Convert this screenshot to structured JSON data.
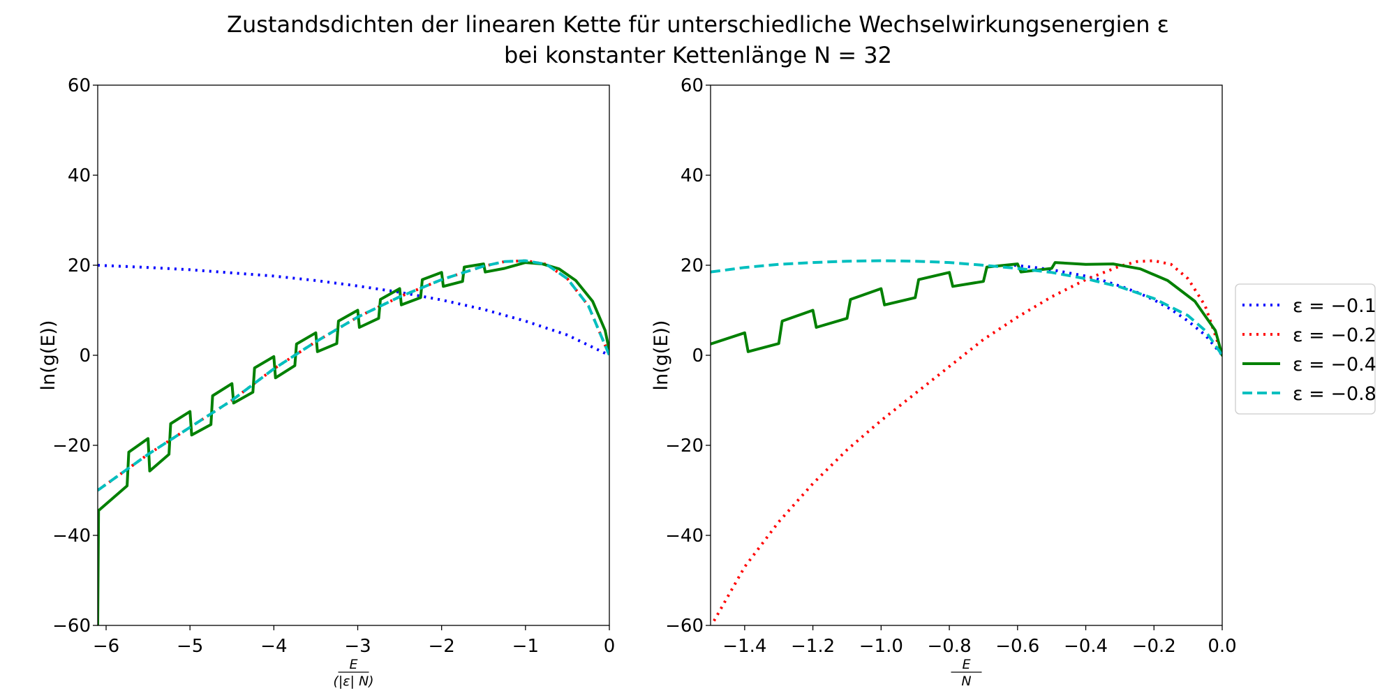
{
  "figure": {
    "title_line1": "Zustandsdichten der linearen Kette für unterschiedliche Wechselwirkungsenergien ε",
    "title_line2": "bei konstanter Kettenlänge N = 32"
  },
  "chart_data": [
    {
      "type": "line",
      "xlabel": "E / (|ε| N)",
      "ylabel": "ln(g(E))",
      "xlim": [
        -6.1,
        0
      ],
      "ylim": [
        -60,
        60
      ],
      "xticks": [
        -6,
        -5,
        -4,
        -3,
        -2,
        -1,
        0
      ],
      "xtick_labels": [
        "−6",
        "−5",
        "−4",
        "−3",
        "−2",
        "−1",
        "0"
      ],
      "yticks": [
        -60,
        -40,
        -20,
        0,
        20,
        40,
        60
      ],
      "ytick_labels": [
        "−60",
        "−40",
        "−20",
        "0",
        "20",
        "40",
        "60"
      ],
      "grid": false,
      "series": [
        {
          "name": "ε = −0.1",
          "color": "#0000ff",
          "style": "dotted",
          "x": [
            -6.1,
            -5.5,
            -5.0,
            -4.5,
            -4.0,
            -3.5,
            -3.0,
            -2.5,
            -2.0,
            -1.5,
            -1.0,
            -0.5,
            0.0
          ],
          "y": [
            20.0,
            19.5,
            19.0,
            18.3,
            17.6,
            16.6,
            15.4,
            14.0,
            12.3,
            10.2,
            7.6,
            4.5,
            0.0
          ]
        },
        {
          "name": "ε = −0.2",
          "color": "#ff0000",
          "style": "dotted",
          "x": [
            -6.1,
            -5.5,
            -5.0,
            -4.5,
            -4.0,
            -3.5,
            -3.0,
            -2.5,
            -2.0,
            -1.5,
            -1.25,
            -1.0,
            -0.75,
            -0.5,
            -0.25,
            0.0
          ],
          "y": [
            -30.0,
            -22.0,
            -16.0,
            -10.0,
            -3.0,
            3.0,
            8.5,
            13.0,
            16.8,
            19.8,
            20.8,
            21.0,
            20.2,
            17.0,
            11.0,
            0.0
          ]
        },
        {
          "name": "ε = −0.4",
          "color": "#008000",
          "style": "solid",
          "x": [
            -6.1,
            -6.09,
            -5.75,
            -5.73,
            -5.5,
            -5.48,
            -5.25,
            -5.23,
            -5.0,
            -4.98,
            -4.75,
            -4.73,
            -4.5,
            -4.48,
            -4.25,
            -4.23,
            -4.0,
            -3.98,
            -3.75,
            -3.73,
            -3.5,
            -3.48,
            -3.25,
            -3.23,
            -3.0,
            -2.98,
            -2.75,
            -2.73,
            -2.5,
            -2.48,
            -2.25,
            -2.23,
            -2.0,
            -1.98,
            -1.75,
            -1.73,
            -1.5,
            -1.48,
            -1.25,
            -1.0,
            -0.8,
            -0.6,
            -0.4,
            -0.2,
            -0.05,
            0.0
          ],
          "y": [
            -60.0,
            -34.5,
            -29.0,
            -21.5,
            -18.5,
            -25.7,
            -22.0,
            -15.2,
            -12.5,
            -17.7,
            -15.4,
            -9.0,
            -6.3,
            -10.6,
            -8.2,
            -2.8,
            -0.3,
            -5.0,
            -2.3,
            2.5,
            5.0,
            0.8,
            2.6,
            7.6,
            10.0,
            6.2,
            8.2,
            12.4,
            14.8,
            11.2,
            12.8,
            16.8,
            18.4,
            15.3,
            16.4,
            19.6,
            20.3,
            18.5,
            19.3,
            20.6,
            20.3,
            19.2,
            16.6,
            12.0,
            5.5,
            1.0
          ]
        },
        {
          "name": "ε = −0.8",
          "color": "#00bfbf",
          "style": "dashed",
          "x": [
            -6.1,
            -5.5,
            -5.0,
            -4.5,
            -4.0,
            -3.5,
            -3.0,
            -2.5,
            -2.0,
            -1.5,
            -1.25,
            -1.0,
            -0.75,
            -0.5,
            -0.25,
            0.0
          ],
          "y": [
            -30.0,
            -22.0,
            -16.0,
            -10.0,
            -3.0,
            3.0,
            8.5,
            13.0,
            16.8,
            19.8,
            20.8,
            21.0,
            20.2,
            17.0,
            11.0,
            0.0
          ]
        }
      ]
    },
    {
      "type": "line",
      "xlabel": "E / N",
      "ylabel": "ln(g(E))",
      "xlim": [
        -1.5,
        0
      ],
      "ylim": [
        -60,
        60
      ],
      "xticks": [
        -1.4,
        -1.2,
        -1.0,
        -0.8,
        -0.6,
        -0.4,
        -0.2,
        0.0
      ],
      "xtick_labels": [
        "−1.4",
        "−1.2",
        "−1.0",
        "−0.8",
        "−0.6",
        "−0.4",
        "−0.2",
        "0.0"
      ],
      "yticks": [
        -60,
        -40,
        -20,
        0,
        20,
        40,
        60
      ],
      "ytick_labels": [
        "−60",
        "−40",
        "−20",
        "0",
        "20",
        "40",
        "60"
      ],
      "grid": false,
      "legend": "outside-right",
      "series": [
        {
          "name": "ε = −0.1",
          "color": "#0000ff",
          "style": "dotted",
          "x": [
            -0.61,
            -0.55,
            -0.5,
            -0.45,
            -0.4,
            -0.35,
            -0.3,
            -0.25,
            -0.2,
            -0.15,
            -0.1,
            -0.05,
            0.0
          ],
          "y": [
            20.0,
            19.5,
            19.0,
            18.3,
            17.6,
            16.6,
            15.4,
            14.0,
            12.3,
            10.2,
            7.6,
            4.5,
            0.0
          ]
        },
        {
          "name": "ε = −0.2",
          "color": "#ff0000",
          "style": "dotted",
          "x": [
            -1.49,
            -1.4,
            -1.3,
            -1.2,
            -1.1,
            -1.0,
            -0.9,
            -0.8,
            -0.7,
            -0.6,
            -0.5,
            -0.4,
            -0.3,
            -0.25,
            -0.2,
            -0.15,
            -0.1,
            -0.05,
            0.0
          ],
          "y": [
            -59.0,
            -47.0,
            -37.0,
            -28.5,
            -21.0,
            -14.5,
            -8.5,
            -2.5,
            3.5,
            8.5,
            13.0,
            16.8,
            19.8,
            20.8,
            21.0,
            20.2,
            17.0,
            11.0,
            0.0
          ]
        },
        {
          "name": "ε = −0.4",
          "color": "#008000",
          "style": "solid",
          "x": [
            -1.5,
            -1.4,
            -1.39,
            -1.3,
            -1.29,
            -1.2,
            -1.19,
            -1.1,
            -1.09,
            -1.0,
            -0.99,
            -0.9,
            -0.89,
            -0.8,
            -0.79,
            -0.7,
            -0.69,
            -0.6,
            -0.59,
            -0.5,
            -0.49,
            -0.4,
            -0.32,
            -0.24,
            -0.16,
            -0.08,
            -0.02,
            0.0
          ],
          "y": [
            2.5,
            5.0,
            0.8,
            2.6,
            7.6,
            10.0,
            6.2,
            8.2,
            12.4,
            14.8,
            11.2,
            12.8,
            16.8,
            18.4,
            15.3,
            16.4,
            19.6,
            20.3,
            18.5,
            19.3,
            20.6,
            20.2,
            20.3,
            19.2,
            16.6,
            12.0,
            5.5,
            0.0
          ]
        },
        {
          "name": "ε = −0.8",
          "color": "#00bfbf",
          "style": "dashed",
          "x": [
            -1.5,
            -1.4,
            -1.3,
            -1.2,
            -1.1,
            -1.0,
            -0.9,
            -0.8,
            -0.7,
            -0.6,
            -0.5,
            -0.4,
            -0.3,
            -0.2,
            -0.1,
            -0.05,
            0.0
          ],
          "y": [
            18.5,
            19.5,
            20.2,
            20.6,
            20.9,
            21.0,
            20.9,
            20.6,
            20.0,
            19.3,
            18.4,
            17.0,
            15.2,
            12.6,
            8.8,
            5.5,
            0.0
          ]
        }
      ]
    }
  ]
}
